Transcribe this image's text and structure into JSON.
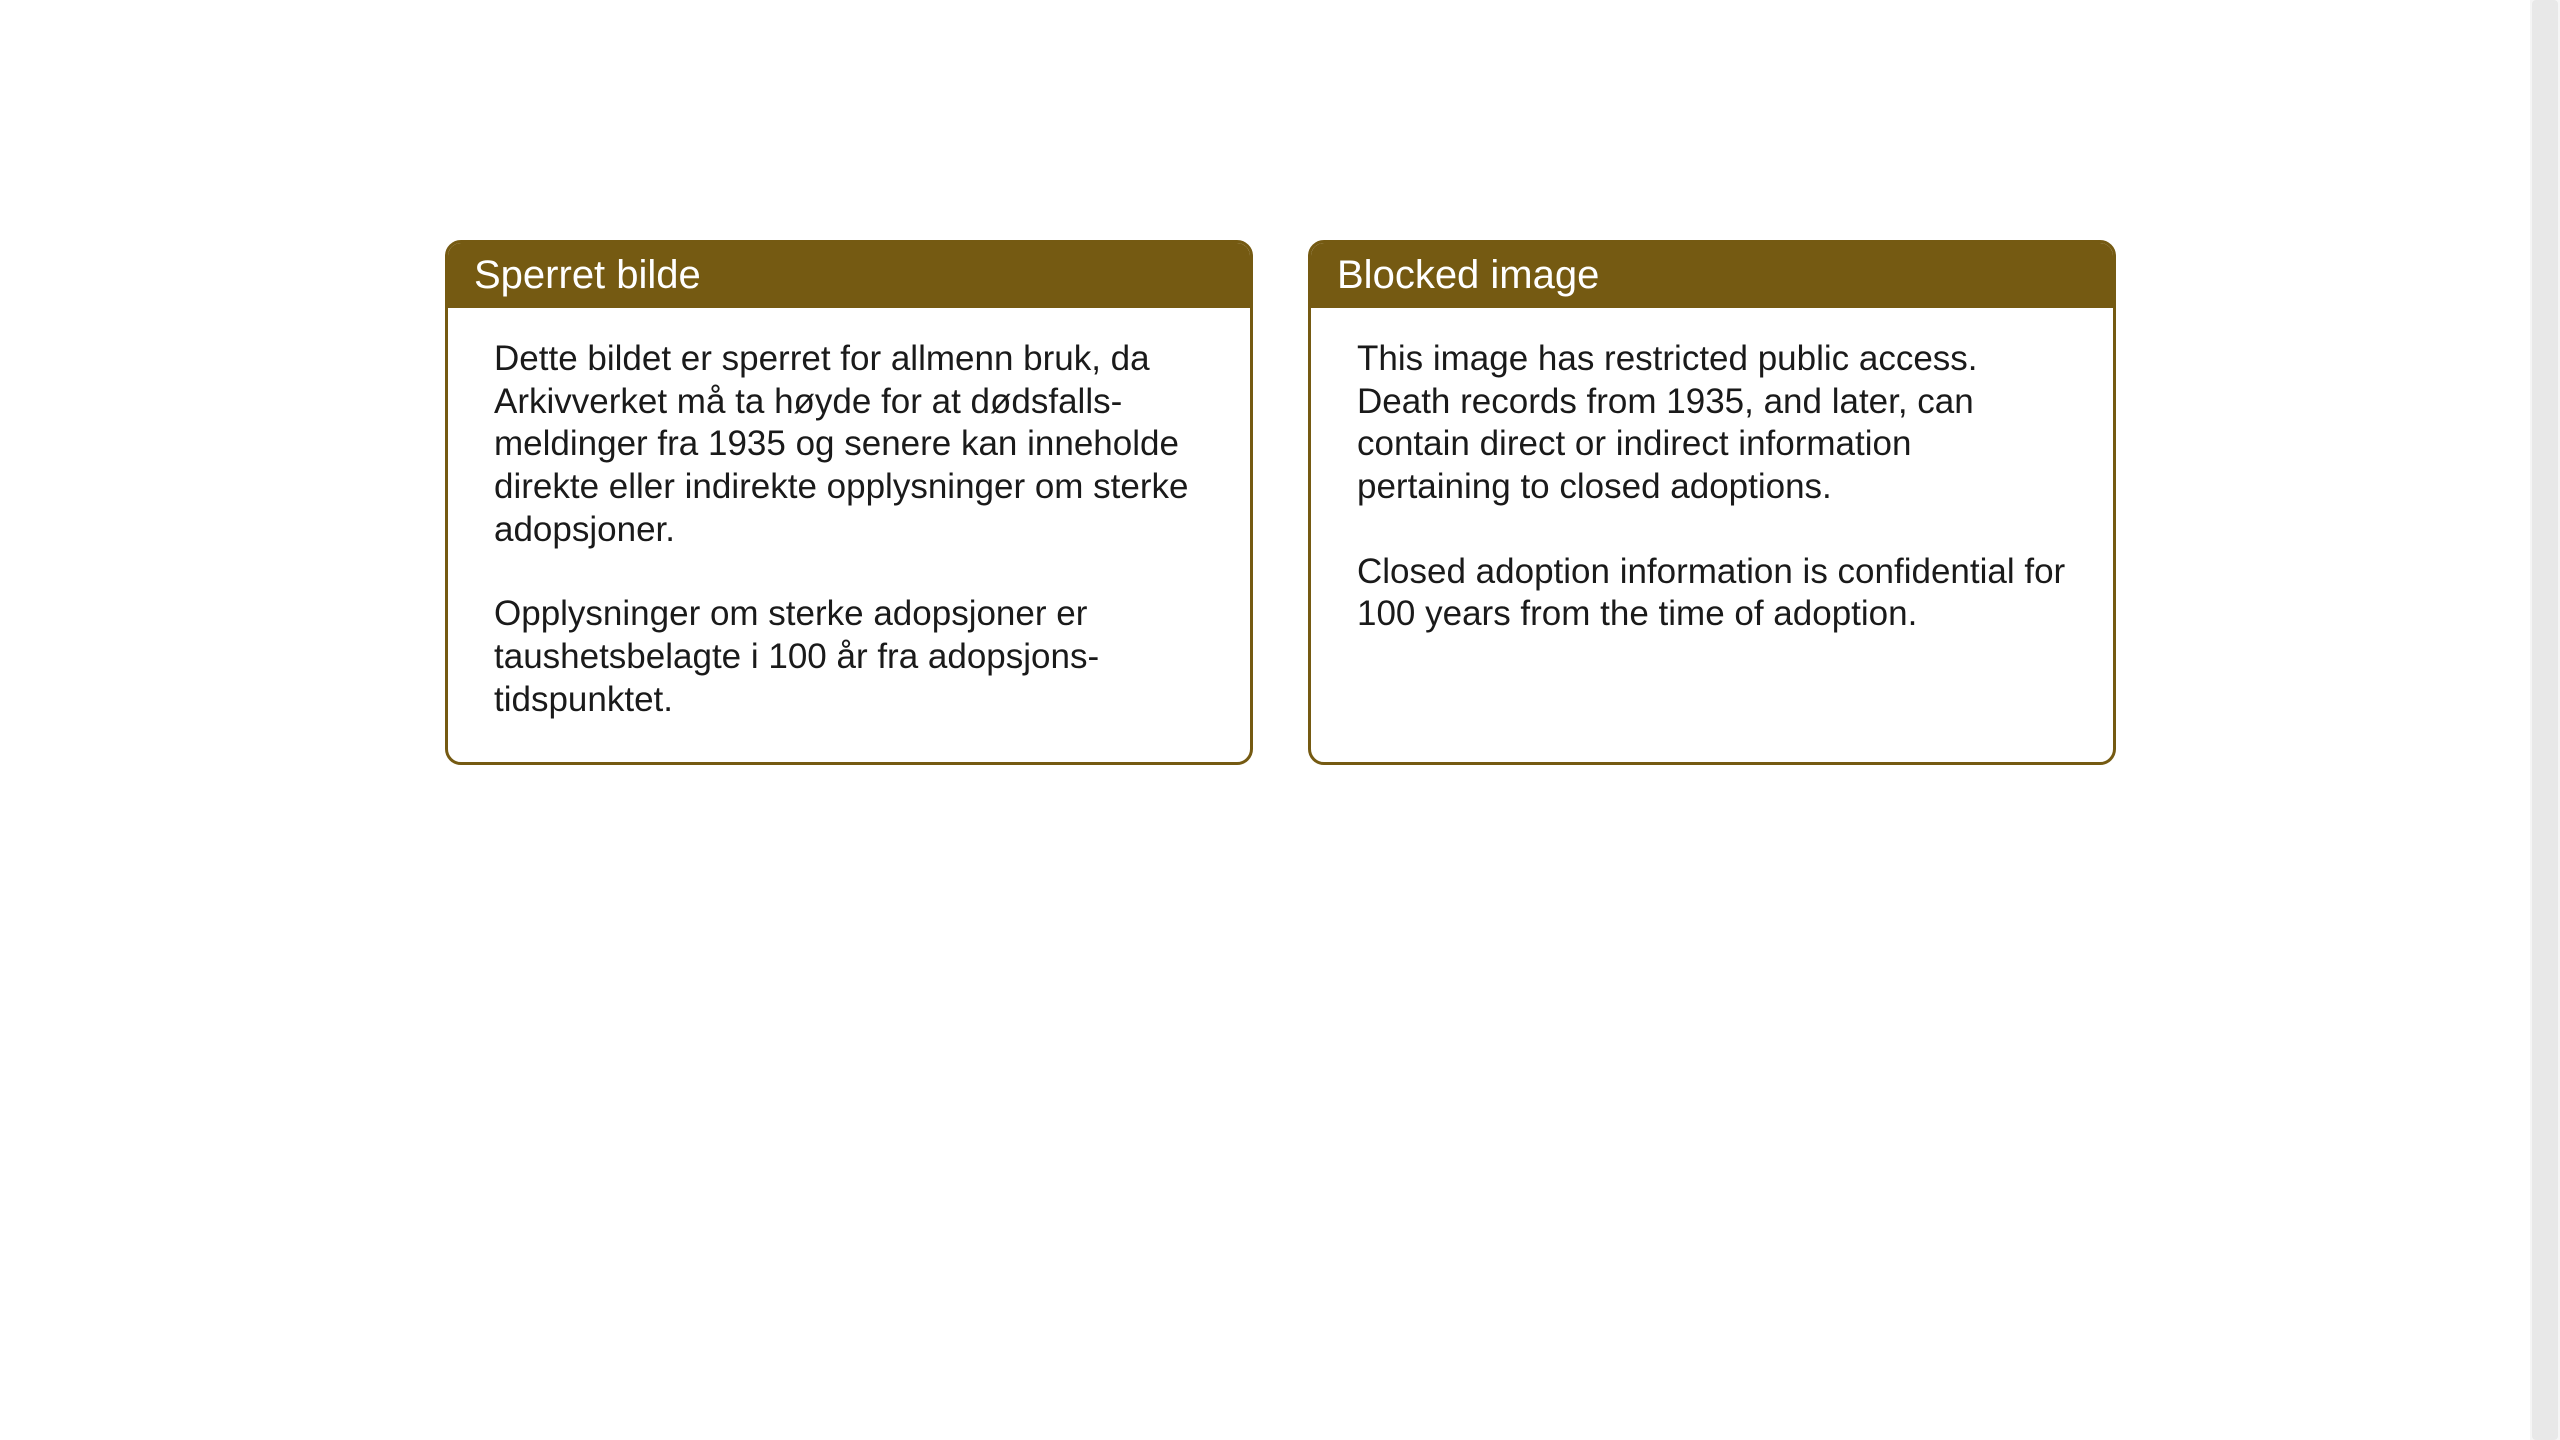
{
  "cards": {
    "norwegian": {
      "title": "Sperret bilde",
      "paragraph1": "Dette bildet er sperret for allmenn bruk, da Arkivverket må ta høyde for at dødsfalls-meldinger fra 1935 og senere kan inneholde direkte eller indirekte opplysninger om sterke adopsjoner.",
      "paragraph2": "Opplysninger om sterke adopsjoner er taushetsbelagte i 100 år fra adopsjons-tidspunktet."
    },
    "english": {
      "title": "Blocked image",
      "paragraph1": "This image has restricted public access. Death records from 1935, and later, can contain direct or indirect information pertaining to closed adoptions.",
      "paragraph2": "Closed adoption information is confidential for 100 years from the time of adoption."
    }
  },
  "styling": {
    "header_bg_color": "#755a12",
    "header_text_color": "#ffffff",
    "border_color": "#755a12",
    "card_bg_color": "#ffffff",
    "body_text_color": "#1a1a1a",
    "page_bg_color": "#ffffff",
    "title_fontsize": 40,
    "body_fontsize": 35,
    "border_radius": 16,
    "border_width": 3
  }
}
